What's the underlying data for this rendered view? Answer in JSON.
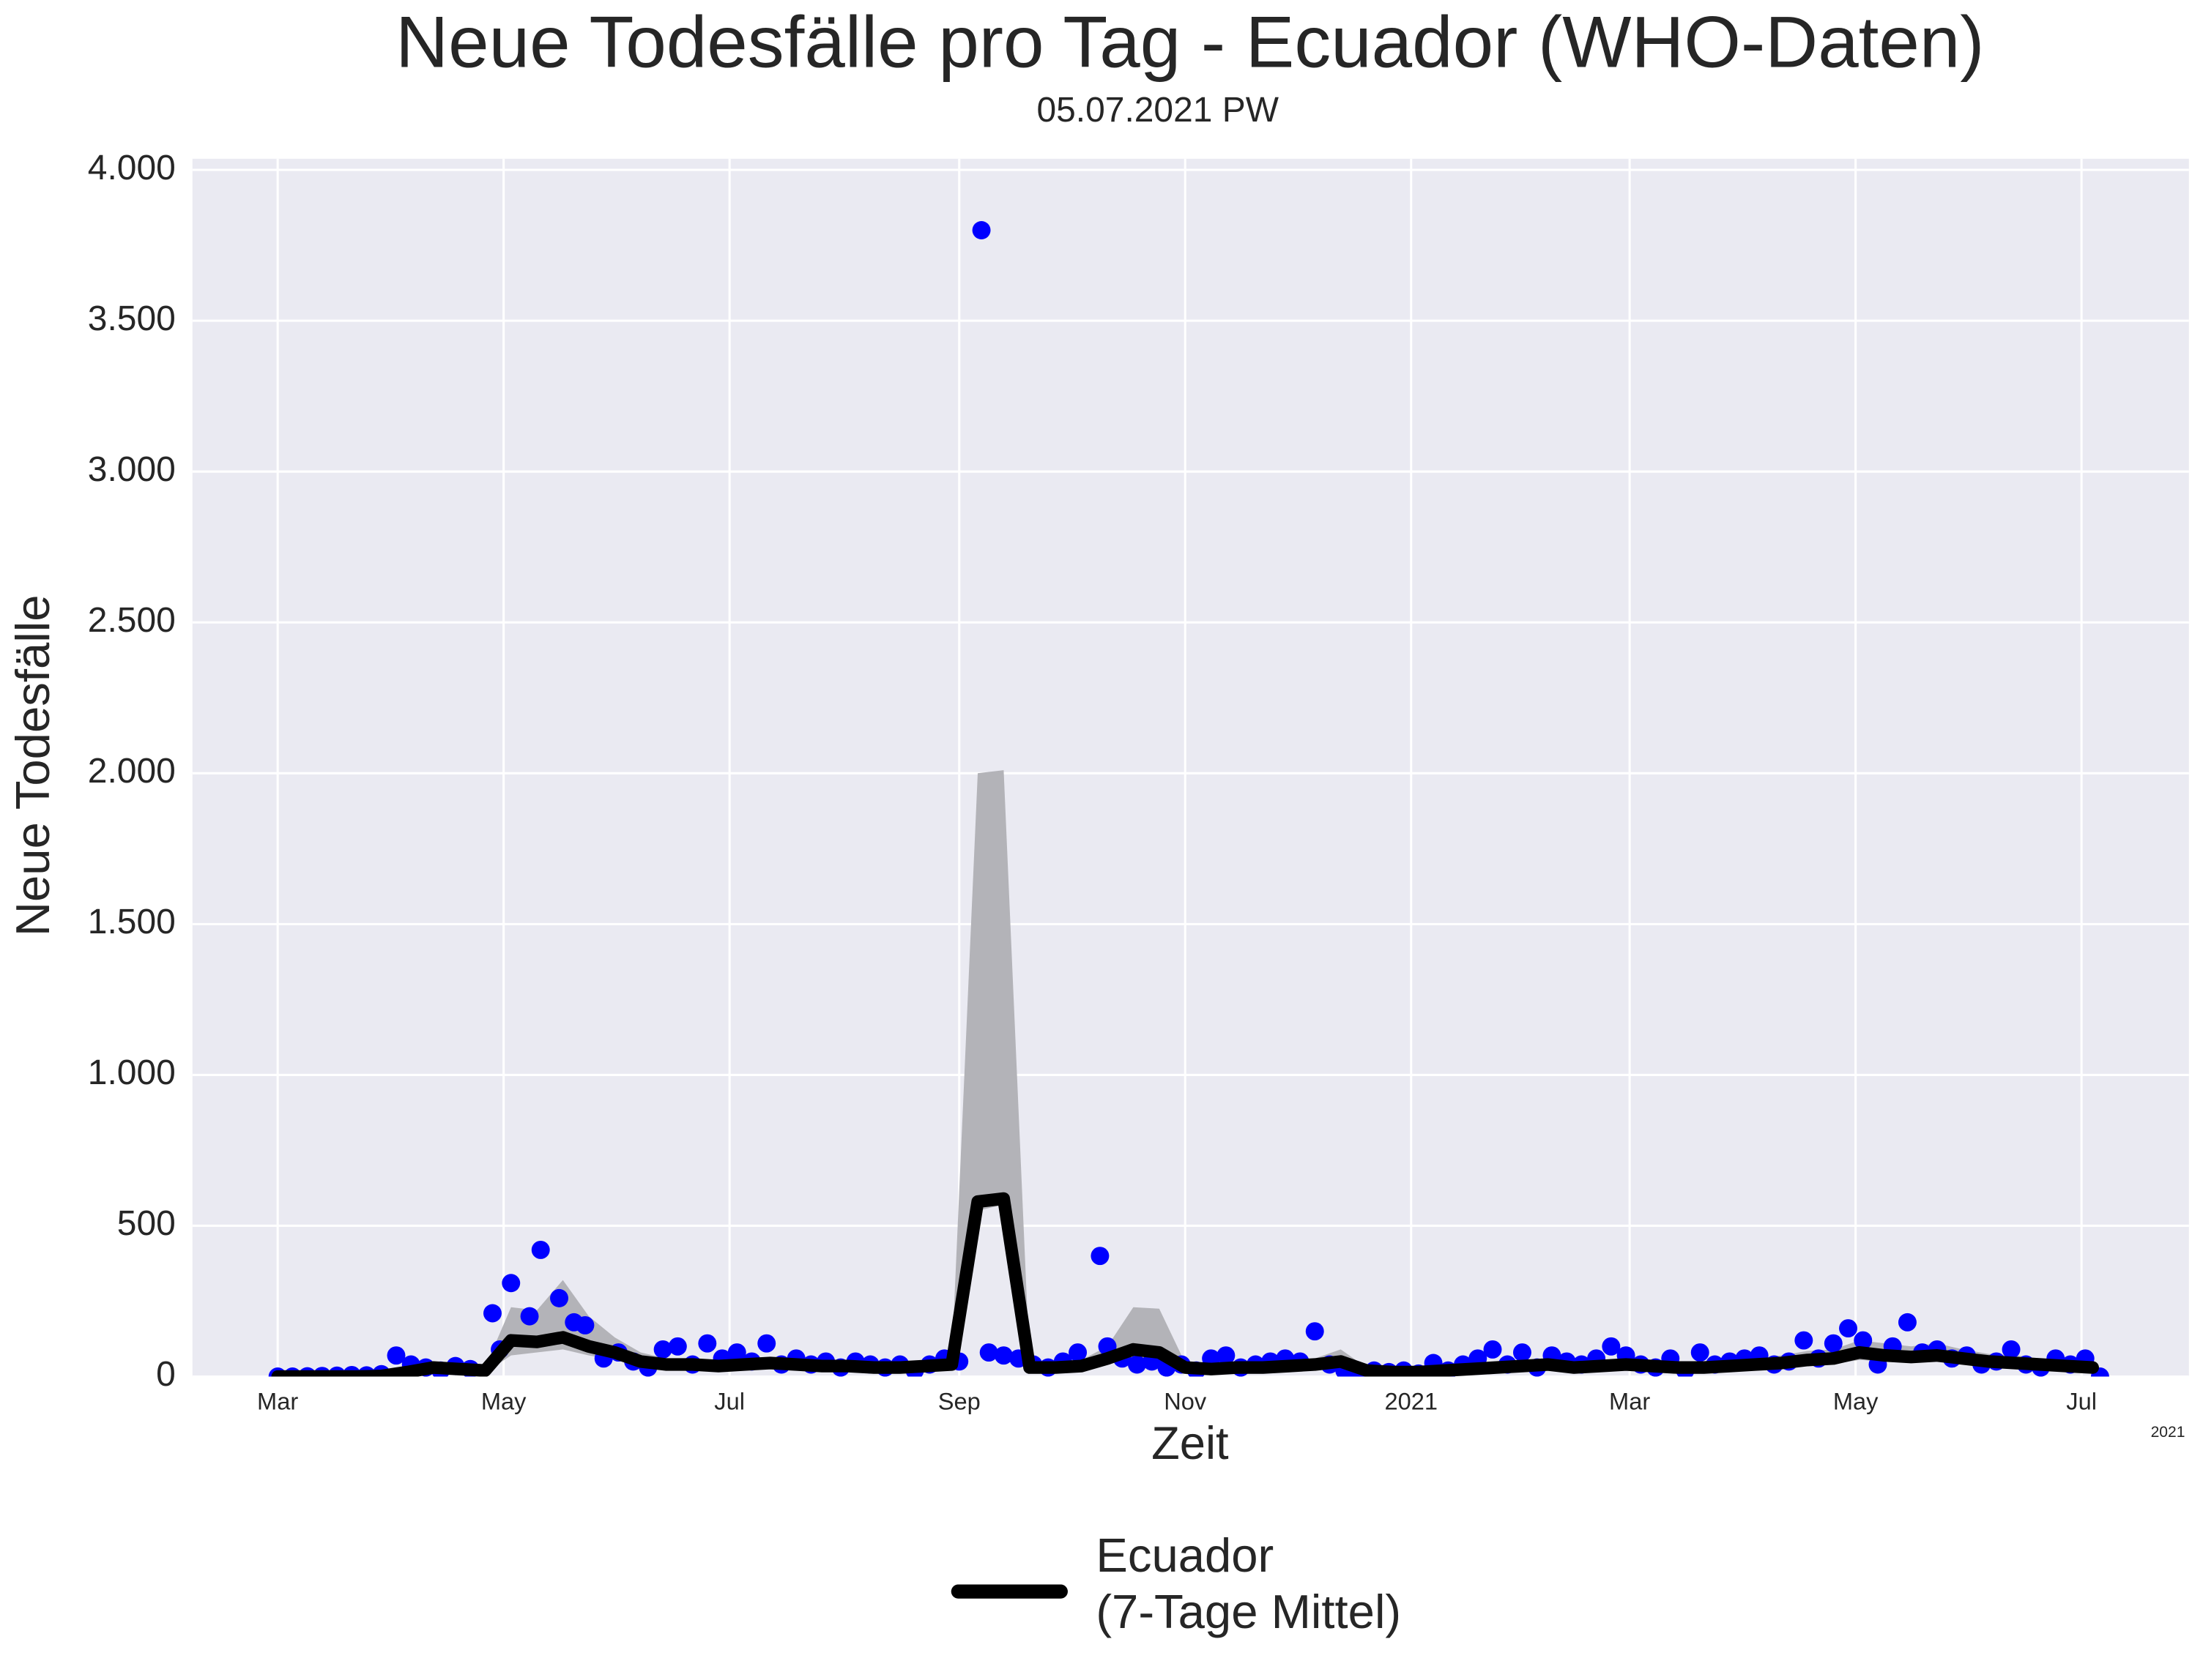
{
  "chart_data": {
    "type": "line",
    "title": "Neue Todesfälle pro Tag - Ecuador (WHO-Daten)",
    "subtitle": "05.07.2021 PW",
    "x_label": "Zeit",
    "y_label": "Neue Todesfälle",
    "x_offset_label": "2021",
    "xlim": [
      -23,
      516
    ],
    "ylim": [
      0,
      4037
    ],
    "xticks": [
      {
        "value": 0,
        "label": "Mar"
      },
      {
        "value": 61,
        "label": "May"
      },
      {
        "value": 122,
        "label": "Jul"
      },
      {
        "value": 184,
        "label": "Sep"
      },
      {
        "value": 245,
        "label": "Nov"
      },
      {
        "value": 306,
        "label": "2021"
      },
      {
        "value": 365,
        "label": "Mar"
      },
      {
        "value": 426,
        "label": "May"
      },
      {
        "value": 487,
        "label": "Jul"
      }
    ],
    "yticks": [
      0,
      500,
      {
        "value": 1000,
        "label": "1.000"
      },
      {
        "value": 1500,
        "label": "1.500"
      },
      {
        "value": 2000,
        "label": "2.000"
      },
      {
        "value": 2500,
        "label": "2.500"
      },
      {
        "value": 3000,
        "label": "3.000"
      },
      {
        "value": 3500,
        "label": "3.500"
      },
      {
        "value": 4000,
        "label": "4.000"
      }
    ],
    "grid": true,
    "legend": "bottom",
    "x": [
      0,
      7,
      14,
      21,
      28,
      35,
      42,
      49,
      56,
      63,
      70,
      77,
      84,
      91,
      98,
      105,
      112,
      119,
      126,
      133,
      140,
      147,
      154,
      161,
      168,
      175,
      182,
      189,
      196,
      203,
      210,
      217,
      224,
      231,
      238,
      245,
      252,
      259,
      266,
      273,
      280,
      287,
      294,
      301,
      308,
      315,
      322,
      329,
      336,
      343,
      350,
      357,
      364,
      371,
      378,
      385,
      392,
      399,
      406,
      413,
      420,
      427,
      434,
      441,
      448,
      455,
      462,
      469,
      476,
      483,
      490
    ],
    "series": [
      {
        "name": "Ecuador\n(7-Tage Mittel)",
        "color": "#000000",
        "values": [
          0,
          0,
          0,
          0,
          2,
          15,
          30,
          25,
          20,
          120,
          115,
          130,
          100,
          80,
          50,
          40,
          40,
          35,
          40,
          45,
          40,
          35,
          35,
          30,
          30,
          35,
          40,
          580,
          590,
          30,
          30,
          35,
          60,
          90,
          80,
          30,
          25,
          30,
          30,
          35,
          40,
          50,
          20,
          15,
          15,
          20,
          25,
          30,
          35,
          40,
          30,
          35,
          40,
          35,
          30,
          30,
          35,
          40,
          45,
          55,
          60,
          80,
          70,
          65,
          70,
          60,
          50,
          45,
          40,
          35,
          30
        ]
      }
    ],
    "band_color": "#b3b3b8",
    "band_lower": [
      0,
      0,
      0,
      0,
      0,
      8,
      18,
      15,
      12,
      70,
      80,
      90,
      70,
      55,
      35,
      28,
      28,
      25,
      28,
      30,
      28,
      25,
      25,
      20,
      20,
      25,
      28,
      550,
      570,
      20,
      20,
      25,
      40,
      60,
      55,
      20,
      18,
      20,
      20,
      25,
      28,
      35,
      14,
      10,
      10,
      14,
      18,
      20,
      25,
      28,
      20,
      25,
      28,
      25,
      20,
      20,
      25,
      28,
      30,
      38,
      42,
      55,
      50,
      45,
      50,
      42,
      35,
      30,
      28,
      25,
      20
    ],
    "band_upper": [
      0,
      0,
      0,
      2,
      5,
      25,
      45,
      40,
      30,
      230,
      220,
      320,
      200,
      130,
      80,
      60,
      60,
      55,
      60,
      65,
      60,
      55,
      55,
      45,
      45,
      55,
      60,
      2000,
      2010,
      45,
      45,
      55,
      100,
      230,
      225,
      45,
      40,
      45,
      45,
      55,
      60,
      90,
      30,
      25,
      25,
      30,
      40,
      45,
      55,
      60,
      45,
      55,
      60,
      55,
      45,
      45,
      55,
      60,
      70,
      85,
      90,
      120,
      110,
      100,
      110,
      90,
      75,
      70,
      60,
      55,
      45
    ],
    "points": {
      "color": "#0000ff",
      "x": [
        0,
        4,
        8,
        12,
        16,
        20,
        24,
        28,
        32,
        36,
        40,
        44,
        48,
        52,
        58,
        60,
        63,
        68,
        71,
        76,
        80,
        83,
        88,
        92,
        96,
        100,
        104,
        108,
        112,
        116,
        120,
        124,
        128,
        132,
        136,
        140,
        144,
        148,
        152,
        156,
        160,
        164,
        168,
        172,
        176,
        180,
        184,
        190,
        192,
        196,
        200,
        204,
        208,
        212,
        216,
        222,
        224,
        228,
        232,
        236,
        240,
        244,
        248,
        252,
        256,
        260,
        264,
        268,
        272,
        276,
        280,
        284,
        288,
        292,
        296,
        300,
        304,
        308,
        312,
        316,
        320,
        324,
        328,
        332,
        336,
        340,
        344,
        348,
        352,
        356,
        360,
        364,
        368,
        372,
        376,
        380,
        384,
        388,
        392,
        396,
        400,
        404,
        408,
        412,
        416,
        420,
        424,
        428,
        432,
        436,
        440,
        444,
        448,
        452,
        456,
        460,
        464,
        468,
        472,
        476,
        480,
        484,
        488,
        492
      ],
      "values": [
        0,
        0,
        1,
        2,
        3,
        5,
        4,
        8,
        70,
        40,
        30,
        20,
        35,
        25,
        210,
        90,
        310,
        200,
        420,
        260,
        180,
        170,
        60,
        80,
        50,
        30,
        90,
        100,
        40,
        110,
        60,
        80,
        50,
        110,
        40,
        60,
        40,
        50,
        30,
        50,
        40,
        30,
        40,
        20,
        40,
        60,
        50,
        3800,
        80,
        70,
        60,
        40,
        30,
        50,
        80,
        400,
        100,
        60,
        40,
        50,
        30,
        40,
        20,
        60,
        70,
        30,
        40,
        50,
        60,
        50,
        150,
        40,
        20,
        10,
        20,
        15,
        20,
        10,
        45,
        20,
        40,
        60,
        90,
        40,
        80,
        30,
        70,
        50,
        40,
        60,
        100,
        70,
        40,
        30,
        60,
        20,
        80,
        40,
        50,
        60,
        70,
        40,
        50,
        120,
        60,
        110,
        160,
        120,
        40,
        100,
        180,
        80,
        90,
        60,
        70,
        40,
        50,
        90,
        40,
        30,
        60,
        40,
        60,
        0
      ]
    }
  }
}
